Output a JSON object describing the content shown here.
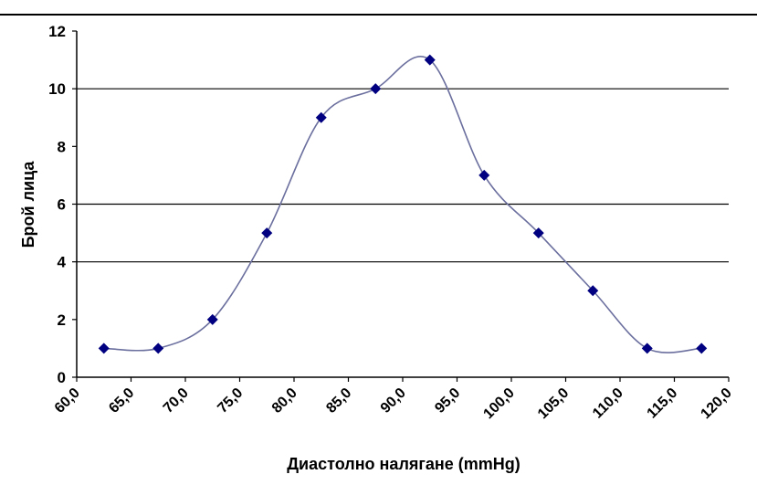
{
  "chart_data": {
    "type": "line",
    "title": "",
    "xlabel": "Диастолно налягане (mmHg)",
    "ylabel": "Брой лица",
    "x_ticks": [
      "60,0",
      "65,0",
      "70,0",
      "75,0",
      "80,0",
      "85,0",
      "90,0",
      "95,0",
      "100,0",
      "105,0",
      "110,0",
      "115,0",
      "120,0"
    ],
    "y_ticks": [
      "0",
      "2",
      "4",
      "6",
      "8",
      "10",
      "12"
    ],
    "xlim": [
      60,
      120
    ],
    "ylim": [
      0,
      12
    ],
    "grid": "horizontal at 4, 6, 10",
    "legend": "none",
    "series": [
      {
        "x": [
          62.5,
          67.5,
          72.5,
          77.5,
          82.5,
          87.5,
          92.5,
          97.5,
          102.5,
          107.5,
          112.5,
          117.5
        ],
        "values": [
          1,
          1,
          2,
          5,
          9,
          10,
          11,
          7,
          5,
          3,
          1,
          1
        ],
        "marker": "diamond",
        "color": "#000080",
        "line_color": "#6b6f9e",
        "smooth": true
      }
    ]
  }
}
